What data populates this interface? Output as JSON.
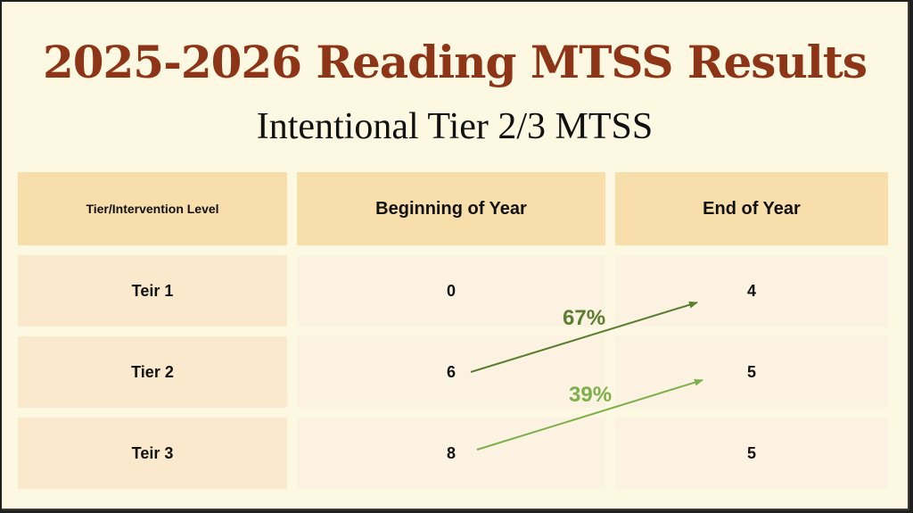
{
  "slide": {
    "title": "2025-2026 Reading MTSS Results",
    "subtitle": "Intentional Tier 2/3 MTSS"
  },
  "table": {
    "headers": [
      "Tier/Intervention Level",
      "Beginning of Year",
      "End of Year"
    ],
    "rows": [
      {
        "level": "Teir 1",
        "boy": "0",
        "eoy": "4"
      },
      {
        "level": "Tier 2",
        "boy": "6",
        "eoy": "5"
      },
      {
        "level": "Teir 3",
        "boy": "8",
        "eoy": "5"
      }
    ]
  },
  "annotations": {
    "arrow1_label": "67%",
    "arrow2_label": "39%",
    "colors": {
      "arrow1": "#5a7e2f",
      "arrow2": "#7db04a",
      "title": "#8e3417",
      "header_fill": "#f8deab"
    }
  }
}
